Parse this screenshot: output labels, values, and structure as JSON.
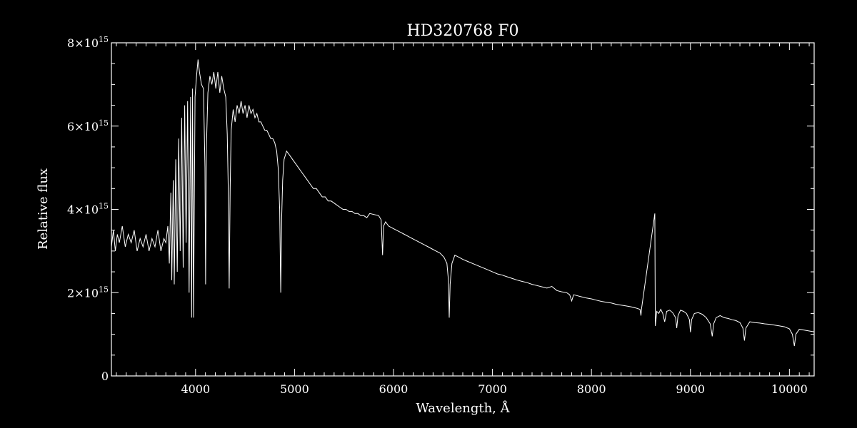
{
  "colors": {
    "background": "#000000",
    "foreground": "#ffffff"
  },
  "chart_data": {
    "type": "line",
    "title": "HD320768  F0",
    "xlabel": "Wavelength, Å",
    "ylabel": "Relative flux",
    "xlim": [
      3150,
      10250
    ],
    "ylim": [
      0,
      8000000000000000.0
    ],
    "grid": false,
    "x_ticks": [
      {
        "value": 4000,
        "label": "4000"
      },
      {
        "value": 5000,
        "label": "5000"
      },
      {
        "value": 6000,
        "label": "6000"
      },
      {
        "value": 7000,
        "label": "7000"
      },
      {
        "value": 8000,
        "label": "8000"
      },
      {
        "value": 9000,
        "label": "9000"
      },
      {
        "value": 10000,
        "label": "10000"
      }
    ],
    "y_ticks": [
      {
        "value": 0,
        "mantissa": "0",
        "exponent": ""
      },
      {
        "value": 2000000000000000.0,
        "mantissa": "2×10",
        "exponent": "15"
      },
      {
        "value": 4000000000000000.0,
        "mantissa": "4×10",
        "exponent": "15"
      },
      {
        "value": 6000000000000000.0,
        "mantissa": "6×10",
        "exponent": "15"
      },
      {
        "value": 8000000000000000.0,
        "mantissa": "8×10",
        "exponent": "15"
      }
    ],
    "series": [
      {
        "unit_scale": 1000000000000000.0,
        "points": [
          [
            3150,
            3.1
          ],
          [
            3170,
            3.5
          ],
          [
            3190,
            3.0
          ],
          [
            3210,
            3.4
          ],
          [
            3230,
            3.2
          ],
          [
            3260,
            3.6
          ],
          [
            3290,
            3.1
          ],
          [
            3320,
            3.4
          ],
          [
            3350,
            3.2
          ],
          [
            3380,
            3.5
          ],
          [
            3410,
            3.0
          ],
          [
            3440,
            3.3
          ],
          [
            3470,
            3.1
          ],
          [
            3500,
            3.4
          ],
          [
            3530,
            3.0
          ],
          [
            3560,
            3.3
          ],
          [
            3590,
            3.1
          ],
          [
            3620,
            3.5
          ],
          [
            3650,
            3.0
          ],
          [
            3680,
            3.3
          ],
          [
            3700,
            3.2
          ],
          [
            3720,
            3.6
          ],
          [
            3735,
            2.7
          ],
          [
            3750,
            4.4
          ],
          [
            3760,
            2.3
          ],
          [
            3775,
            4.7
          ],
          [
            3785,
            2.2
          ],
          [
            3800,
            5.2
          ],
          [
            3815,
            2.5
          ],
          [
            3830,
            5.7
          ],
          [
            3845,
            3.0
          ],
          [
            3860,
            6.2
          ],
          [
            3875,
            2.6
          ],
          [
            3890,
            6.5
          ],
          [
            3905,
            3.2
          ],
          [
            3920,
            6.6
          ],
          [
            3935,
            2.0
          ],
          [
            3950,
            6.7
          ],
          [
            3960,
            1.4
          ],
          [
            3970,
            6.9
          ],
          [
            3980,
            1.4
          ],
          [
            3995,
            6.7
          ],
          [
            4010,
            7.2
          ],
          [
            4025,
            7.6
          ],
          [
            4040,
            7.3
          ],
          [
            4060,
            7.0
          ],
          [
            4080,
            6.9
          ],
          [
            4095,
            5.0
          ],
          [
            4102,
            2.2
          ],
          [
            4110,
            5.5
          ],
          [
            4125,
            6.8
          ],
          [
            4145,
            7.2
          ],
          [
            4165,
            7.0
          ],
          [
            4185,
            7.3
          ],
          [
            4205,
            6.9
          ],
          [
            4225,
            7.3
          ],
          [
            4245,
            6.8
          ],
          [
            4265,
            7.2
          ],
          [
            4285,
            6.9
          ],
          [
            4305,
            6.7
          ],
          [
            4320,
            5.8
          ],
          [
            4330,
            4.6
          ],
          [
            4340,
            2.1
          ],
          [
            4350,
            4.5
          ],
          [
            4360,
            5.9
          ],
          [
            4380,
            6.4
          ],
          [
            4400,
            6.1
          ],
          [
            4420,
            6.5
          ],
          [
            4440,
            6.3
          ],
          [
            4460,
            6.6
          ],
          [
            4480,
            6.3
          ],
          [
            4500,
            6.5
          ],
          [
            4520,
            6.2
          ],
          [
            4540,
            6.5
          ],
          [
            4560,
            6.3
          ],
          [
            4580,
            6.4
          ],
          [
            4600,
            6.2
          ],
          [
            4620,
            6.3
          ],
          [
            4640,
            6.1
          ],
          [
            4660,
            6.1
          ],
          [
            4680,
            6.0
          ],
          [
            4700,
            5.9
          ],
          [
            4720,
            5.9
          ],
          [
            4740,
            5.8
          ],
          [
            4760,
            5.7
          ],
          [
            4780,
            5.7
          ],
          [
            4800,
            5.6
          ],
          [
            4820,
            5.4
          ],
          [
            4835,
            5.0
          ],
          [
            4850,
            4.0
          ],
          [
            4861,
            2.0
          ],
          [
            4870,
            3.8
          ],
          [
            4880,
            4.7
          ],
          [
            4895,
            5.2
          ],
          [
            4920,
            5.4
          ],
          [
            4950,
            5.3
          ],
          [
            4980,
            5.2
          ],
          [
            5010,
            5.1
          ],
          [
            5040,
            5.0
          ],
          [
            5070,
            4.9
          ],
          [
            5100,
            4.8
          ],
          [
            5130,
            4.7
          ],
          [
            5160,
            4.6
          ],
          [
            5190,
            4.5
          ],
          [
            5220,
            4.5
          ],
          [
            5250,
            4.4
          ],
          [
            5280,
            4.3
          ],
          [
            5310,
            4.3
          ],
          [
            5340,
            4.2
          ],
          [
            5370,
            4.2
          ],
          [
            5400,
            4.15
          ],
          [
            5430,
            4.1
          ],
          [
            5460,
            4.05
          ],
          [
            5490,
            4.0
          ],
          [
            5520,
            4.0
          ],
          [
            5550,
            3.95
          ],
          [
            5580,
            3.95
          ],
          [
            5610,
            3.9
          ],
          [
            5640,
            3.9
          ],
          [
            5670,
            3.85
          ],
          [
            5700,
            3.85
          ],
          [
            5730,
            3.8
          ],
          [
            5760,
            3.9
          ],
          [
            5850,
            3.85
          ],
          [
            5875,
            3.75
          ],
          [
            5890,
            2.9
          ],
          [
            5900,
            3.6
          ],
          [
            5920,
            3.7
          ],
          [
            5950,
            3.6
          ],
          [
            5990,
            3.55
          ],
          [
            6030,
            3.5
          ],
          [
            6070,
            3.45
          ],
          [
            6110,
            3.4
          ],
          [
            6150,
            3.35
          ],
          [
            6190,
            3.3
          ],
          [
            6230,
            3.25
          ],
          [
            6270,
            3.2
          ],
          [
            6310,
            3.15
          ],
          [
            6350,
            3.1
          ],
          [
            6390,
            3.05
          ],
          [
            6430,
            3.0
          ],
          [
            6470,
            2.95
          ],
          [
            6510,
            2.85
          ],
          [
            6540,
            2.7
          ],
          [
            6555,
            2.3
          ],
          [
            6563,
            1.4
          ],
          [
            6572,
            2.2
          ],
          [
            6590,
            2.7
          ],
          [
            6620,
            2.9
          ],
          [
            6660,
            2.85
          ],
          [
            6700,
            2.8
          ],
          [
            6750,
            2.75
          ],
          [
            6800,
            2.7
          ],
          [
            6850,
            2.65
          ],
          [
            6900,
            2.6
          ],
          [
            6950,
            2.55
          ],
          [
            7000,
            2.5
          ],
          [
            7050,
            2.45
          ],
          [
            7100,
            2.42
          ],
          [
            7150,
            2.38
          ],
          [
            7200,
            2.34
          ],
          [
            7250,
            2.3
          ],
          [
            7300,
            2.27
          ],
          [
            7350,
            2.24
          ],
          [
            7400,
            2.2
          ],
          [
            7450,
            2.17
          ],
          [
            7500,
            2.14
          ],
          [
            7550,
            2.11
          ],
          [
            7600,
            2.15
          ],
          [
            7650,
            2.05
          ],
          [
            7700,
            2.02
          ],
          [
            7750,
            2.0
          ],
          [
            7780,
            1.95
          ],
          [
            7800,
            1.8
          ],
          [
            7820,
            1.95
          ],
          [
            7850,
            1.93
          ],
          [
            7900,
            1.9
          ],
          [
            7950,
            1.87
          ],
          [
            8000,
            1.85
          ],
          [
            8050,
            1.82
          ],
          [
            8100,
            1.79
          ],
          [
            8150,
            1.77
          ],
          [
            8200,
            1.75
          ],
          [
            8250,
            1.72
          ],
          [
            8300,
            1.7
          ],
          [
            8350,
            1.68
          ],
          [
            8400,
            1.66
          ],
          [
            8450,
            1.63
          ],
          [
            8490,
            1.6
          ],
          [
            8500,
            1.45
          ],
          [
            8505,
            1.6
          ],
          [
            8640,
            3.9
          ],
          [
            8645,
            1.2
          ],
          [
            8660,
            1.55
          ],
          [
            8680,
            1.5
          ],
          [
            8700,
            1.6
          ],
          [
            8720,
            1.5
          ],
          [
            8740,
            1.3
          ],
          [
            8760,
            1.55
          ],
          [
            8790,
            1.58
          ],
          [
            8820,
            1.52
          ],
          [
            8850,
            1.4
          ],
          [
            8862,
            1.15
          ],
          [
            8875,
            1.45
          ],
          [
            8900,
            1.58
          ],
          [
            8930,
            1.55
          ],
          [
            8960,
            1.5
          ],
          [
            8990,
            1.35
          ],
          [
            9000,
            1.05
          ],
          [
            9012,
            1.35
          ],
          [
            9040,
            1.5
          ],
          [
            9080,
            1.52
          ],
          [
            9120,
            1.48
          ],
          [
            9160,
            1.4
          ],
          [
            9200,
            1.25
          ],
          [
            9220,
            0.95
          ],
          [
            9235,
            1.25
          ],
          [
            9260,
            1.4
          ],
          [
            9300,
            1.45
          ],
          [
            9340,
            1.4
          ],
          [
            9380,
            1.38
          ],
          [
            9420,
            1.35
          ],
          [
            9460,
            1.33
          ],
          [
            9500,
            1.28
          ],
          [
            9530,
            1.15
          ],
          [
            9546,
            0.85
          ],
          [
            9560,
            1.15
          ],
          [
            9600,
            1.3
          ],
          [
            9650,
            1.28
          ],
          [
            9700,
            1.27
          ],
          [
            9750,
            1.25
          ],
          [
            9800,
            1.24
          ],
          [
            9850,
            1.22
          ],
          [
            9900,
            1.2
          ],
          [
            9950,
            1.18
          ],
          [
            10000,
            1.13
          ],
          [
            10030,
            1.0
          ],
          [
            10050,
            0.72
          ],
          [
            10065,
            1.0
          ],
          [
            10100,
            1.12
          ],
          [
            10150,
            1.1
          ],
          [
            10200,
            1.08
          ],
          [
            10250,
            1.06
          ]
        ]
      }
    ]
  }
}
